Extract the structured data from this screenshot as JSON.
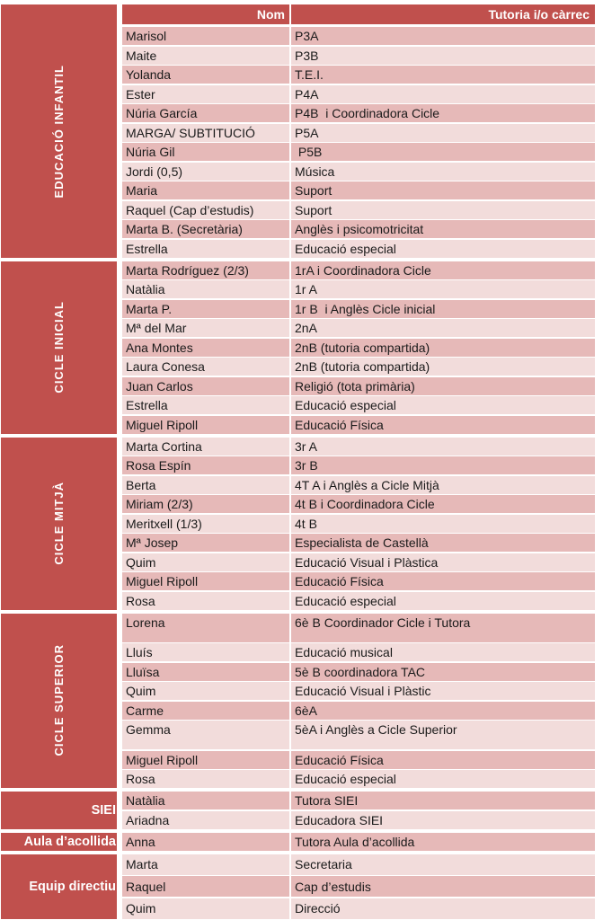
{
  "palette": {
    "accent": "#C0504D",
    "row_dark": "#E6B9B8",
    "row_light": "#F2DCDB",
    "header_text": "#FFFFFF",
    "text": "#1A1A1A"
  },
  "header": {
    "nom": "Nom",
    "carrec": "Tutoria i/o càrrec"
  },
  "sections": [
    {
      "id": "educacio-infantil",
      "label": "EDUCACIÓ INFANTIL",
      "label_orientation": "vertical",
      "rows": [
        {
          "nom": "Marisol",
          "carrec": "P3A"
        },
        {
          "nom": "Maite",
          "carrec": "P3B"
        },
        {
          "nom": "Yolanda",
          "carrec": "T.E.I."
        },
        {
          "nom": "Ester",
          "carrec": "P4A"
        },
        {
          "nom": "Núria García",
          "carrec": "P4B  i Coordinadora Cicle"
        },
        {
          "nom": "MARGA/ SUBTITUCIÓ",
          "carrec": "P5A"
        },
        {
          "nom": "Núria Gil",
          "carrec": " P5B"
        },
        {
          "nom": "Jordi (0,5)",
          "carrec": "Música"
        },
        {
          "nom": "Maria",
          "carrec": "Suport"
        },
        {
          "nom": "Raquel (Cap d’estudis)",
          "carrec": "Suport"
        },
        {
          "nom": "Marta B. (Secretària)",
          "carrec": "Anglès i psicomotricitat"
        },
        {
          "nom": "Estrella",
          "carrec": "Educació especial"
        }
      ]
    },
    {
      "id": "cicle-inicial",
      "label": "CICLE INICIAL",
      "label_orientation": "vertical",
      "rows": [
        {
          "nom": "Marta Rodríguez (2/3)",
          "carrec": "1rA i Coordinadora Cicle"
        },
        {
          "nom": "Natàlia",
          "carrec": "1r A"
        },
        {
          "nom": "Marta P.",
          "carrec": "1r B  i Anglès Cicle inicial"
        },
        {
          "nom": "Mª del Mar",
          "carrec": "2nA"
        },
        {
          "nom": "Ana Montes",
          "carrec": "2nB (tutoria compartida)"
        },
        {
          "nom": "Laura Conesa",
          "carrec": "2nB (tutoria compartida)"
        },
        {
          "nom": "Juan Carlos",
          "carrec": "Religió (tota primària)"
        },
        {
          "nom": "Estrella",
          "carrec": "Educació especial"
        },
        {
          "nom": "Miguel Ripoll",
          "carrec": "Educació Física"
        }
      ]
    },
    {
      "id": "cicle-mitja",
      "label": "CICLE MITJÀ",
      "label_orientation": "vertical",
      "rows": [
        {
          "nom": "Marta Cortina",
          "carrec": "3r A"
        },
        {
          "nom": "Rosa Espín",
          "carrec": "3r B"
        },
        {
          "nom": "Berta",
          "carrec": "4T A i Anglès a Cicle Mitjà"
        },
        {
          "nom": "Miriam (2/3)",
          "carrec": "4t B i Coordinadora Cicle"
        },
        {
          "nom": "Meritxell (1/3)",
          "carrec": "4t B"
        },
        {
          "nom": "Mª Josep",
          "carrec": "Especialista de Castellà"
        },
        {
          "nom": "Quim",
          "carrec": "Educació Visual i Plàstica"
        },
        {
          "nom": "Miguel Ripoll",
          "carrec": "Educació Física"
        },
        {
          "nom": "Rosa",
          "carrec": "Educació especial"
        }
      ]
    },
    {
      "id": "cicle-superior",
      "label": "CICLE SUPERIOR",
      "label_orientation": "vertical",
      "rows": [
        {
          "nom": "Lorena",
          "carrec": "6è B Coordinador Cicle i Tutora",
          "size": "tall"
        },
        {
          "nom": "Lluís",
          "carrec": "Educació musical"
        },
        {
          "nom": "Lluïsa",
          "carrec": "5è B coordinadora TAC"
        },
        {
          "nom": "Quim",
          "carrec": "Educació Visual i Plàstic"
        },
        {
          "nom": "Carme",
          "carrec": "6èA"
        },
        {
          "nom": "Gemma",
          "carrec": "5èA i Anglès a Cicle Superior",
          "size": "tall"
        },
        {
          "nom": "Miguel Ripoll",
          "carrec": "Educació Física"
        },
        {
          "nom": "Rosa",
          "carrec": "Educació especial"
        }
      ]
    },
    {
      "id": "siei",
      "label": "SIEI",
      "label_orientation": "horizontal",
      "rows": [
        {
          "nom": "Natàlia",
          "carrec": "Tutora SIEI"
        },
        {
          "nom": "Ariadna",
          "carrec": "Educadora SIEI"
        }
      ]
    },
    {
      "id": "aula-acollida",
      "label": "Aula d’acollida",
      "label_orientation": "horizontal",
      "rows": [
        {
          "nom": "Anna",
          "carrec": "Tutora Aula d’acollida"
        }
      ]
    },
    {
      "id": "equip-directiu",
      "label": "Equip directiu",
      "label_orientation": "horizontal",
      "row_size": "medium",
      "rows": [
        {
          "nom": "Marta",
          "carrec": "Secretaria"
        },
        {
          "nom": "Raquel",
          "carrec": "Cap d’estudis"
        },
        {
          "nom": "Quim",
          "carrec": "Direcció"
        }
      ]
    }
  ]
}
